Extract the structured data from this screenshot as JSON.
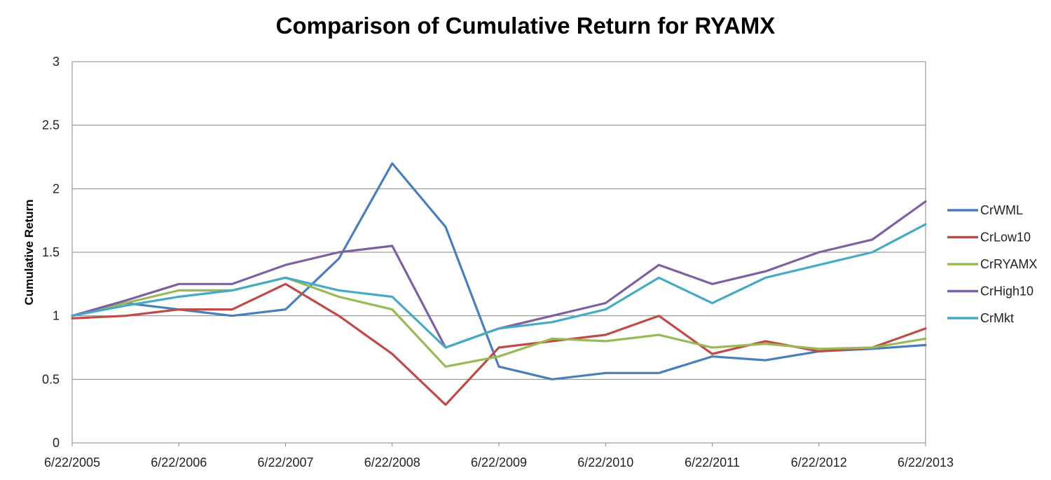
{
  "chart_data": {
    "type": "line",
    "title": "Comparison of Cumulative Return for RYAMX",
    "xlabel": "",
    "ylabel": "Cumulative Return",
    "ylim": [
      0,
      3
    ],
    "yticks": [
      "0",
      "0.5",
      "1",
      "1.5",
      "2",
      "2.5",
      "3"
    ],
    "xticks": [
      "6/22/2005",
      "6/22/2006",
      "6/22/2007",
      "6/22/2008",
      "6/22/2009",
      "6/22/2010",
      "6/22/2011",
      "6/22/2012",
      "6/22/2013"
    ],
    "grid": "horizontal",
    "legend_position": "right",
    "x": [
      "6/22/2005",
      "12/22/2005",
      "6/22/2006",
      "12/22/2006",
      "6/22/2007",
      "12/22/2007",
      "6/22/2008",
      "12/22/2008",
      "6/22/2009",
      "12/22/2009",
      "6/22/2010",
      "12/22/2010",
      "6/22/2011",
      "12/22/2011",
      "6/22/2012",
      "12/22/2012",
      "6/22/2013"
    ],
    "series": [
      {
        "name": "CrWML",
        "color": "#4a7ebb",
        "values": [
          1.0,
          1.1,
          1.05,
          1.0,
          1.05,
          1.45,
          2.2,
          1.7,
          0.6,
          0.5,
          0.55,
          0.55,
          0.68,
          0.65,
          0.72,
          0.74,
          0.77
        ]
      },
      {
        "name": "CrLow10",
        "color": "#be4b48",
        "values": [
          0.98,
          1.0,
          1.05,
          1.05,
          1.25,
          1.0,
          0.7,
          0.3,
          0.75,
          0.8,
          0.85,
          1.0,
          0.7,
          0.8,
          0.72,
          0.75,
          0.9
        ]
      },
      {
        "name": "CrRYAMX",
        "color": "#98b954",
        "values": [
          1.0,
          1.1,
          1.2,
          1.2,
          1.3,
          1.15,
          1.05,
          0.6,
          0.68,
          0.82,
          0.8,
          0.85,
          0.75,
          0.78,
          0.74,
          0.75,
          0.82
        ]
      },
      {
        "name": "CrHigh10",
        "color": "#7d60a0",
        "values": [
          1.0,
          1.12,
          1.25,
          1.25,
          1.4,
          1.5,
          1.55,
          0.75,
          0.9,
          1.0,
          1.1,
          1.4,
          1.25,
          1.35,
          1.5,
          1.6,
          1.9
        ]
      },
      {
        "name": "CrMkt",
        "color": "#46aac5",
        "values": [
          1.0,
          1.08,
          1.15,
          1.2,
          1.3,
          1.2,
          1.15,
          0.75,
          0.9,
          0.95,
          1.05,
          1.3,
          1.1,
          1.3,
          1.4,
          1.5,
          1.72
        ]
      }
    ]
  }
}
